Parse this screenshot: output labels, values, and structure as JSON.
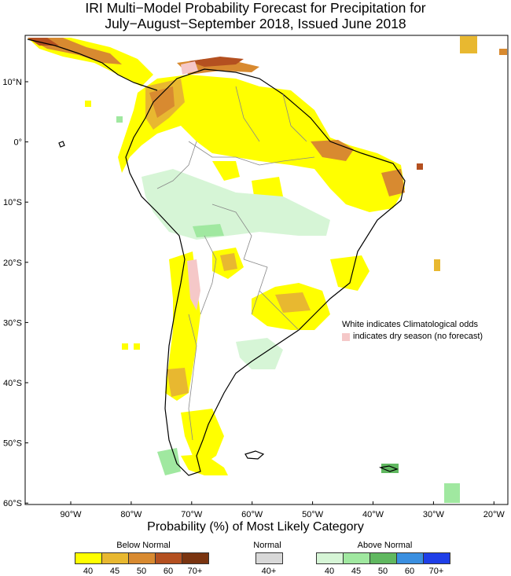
{
  "title": {
    "line1": "IRI Multi−Model Probability Forecast for Precipitation for",
    "line2": "July−August−September 2018, Issued June 2018"
  },
  "axes": {
    "lat_labels": [
      "10°N",
      "0°",
      "10°S",
      "20°S",
      "30°S",
      "40°S",
      "50°S",
      "60°S"
    ],
    "lon_labels": [
      "90°W",
      "80°W",
      "70°W",
      "60°W",
      "50°W",
      "40°W",
      "30°W",
      "20°W"
    ]
  },
  "note": {
    "line1": "White indicates Climatological odds",
    "line2": "indicates dry season (no forecast)"
  },
  "legend": {
    "title": "Probability (%) of Most Likely Category",
    "below": {
      "name": "Below Normal",
      "ticks": [
        "40",
        "45",
        "50",
        "60",
        "70+"
      ],
      "colors": [
        "#ffff00",
        "#e8b830",
        "#d88a30",
        "#b45020",
        "#7a3410"
      ]
    },
    "normal": {
      "name": "Normal",
      "ticks": [
        "40+"
      ],
      "colors": [
        "#d8d8d8"
      ]
    },
    "above": {
      "name": "Above Normal",
      "ticks": [
        "40",
        "45",
        "50",
        "60",
        "70+"
      ],
      "colors": [
        "#d6f5d6",
        "#a0e8a0",
        "#60b860",
        "#3a8fe0",
        "#1f3fe8"
      ]
    }
  },
  "colors": {
    "land_outline": "#000000",
    "border": "#888888",
    "dry_season": "#f5c8c8"
  }
}
